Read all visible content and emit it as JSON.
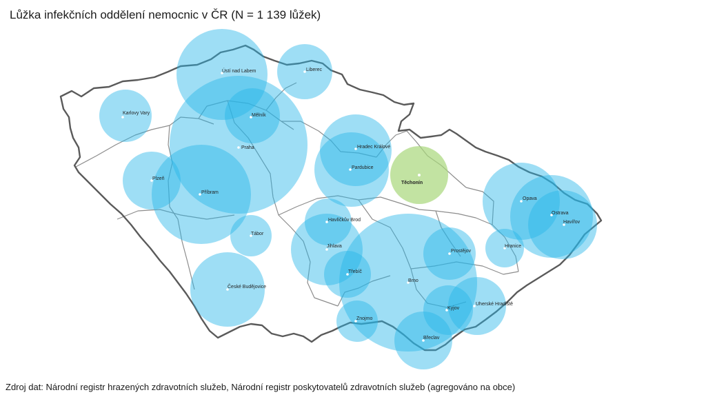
{
  "title": "Lůžka infekčních oddělení nemocnic v ČR (N = 1 139 lůžek)",
  "source": "Zdroj dat: Národní registr hrazených zdravotních služeb, Národní registr poskytovatelů zdravotních služeb (agregováno na obce)",
  "colors": {
    "bubble": "#29b6e8",
    "highlight": "#a8d77a",
    "border": "#5a5a5a",
    "region_border": "#8c8c8c"
  },
  "cities": [
    {
      "name": "Ústí nad Labem",
      "highlight": false
    },
    {
      "name": "Liberec",
      "highlight": false
    },
    {
      "name": "Karlovy Vary",
      "highlight": false
    },
    {
      "name": "Mělník",
      "highlight": false
    },
    {
      "name": "Praha",
      "highlight": false
    },
    {
      "name": "Plzeň",
      "highlight": false
    },
    {
      "name": "Příbram",
      "highlight": false
    },
    {
      "name": "Tábor",
      "highlight": false
    },
    {
      "name": "České Budějovice",
      "highlight": false
    },
    {
      "name": "Hradec Králové",
      "highlight": false
    },
    {
      "name": "Pardubice",
      "highlight": false
    },
    {
      "name": "Těchonín",
      "highlight": true
    },
    {
      "name": "Havlíčkův Brod",
      "highlight": false
    },
    {
      "name": "Jihlava",
      "highlight": false
    },
    {
      "name": "Třebíč",
      "highlight": false
    },
    {
      "name": "Znojmo",
      "highlight": false
    },
    {
      "name": "Brno",
      "highlight": false
    },
    {
      "name": "Prostějov",
      "highlight": false
    },
    {
      "name": "Kyjov",
      "highlight": false
    },
    {
      "name": "Uherské Hradiště",
      "highlight": false
    },
    {
      "name": "Břeclav",
      "highlight": false
    },
    {
      "name": "Opava",
      "highlight": false
    },
    {
      "name": "Ostrava",
      "highlight": false
    },
    {
      "name": "Havířov",
      "highlight": false
    },
    {
      "name": "Hranice",
      "highlight": false
    }
  ]
}
